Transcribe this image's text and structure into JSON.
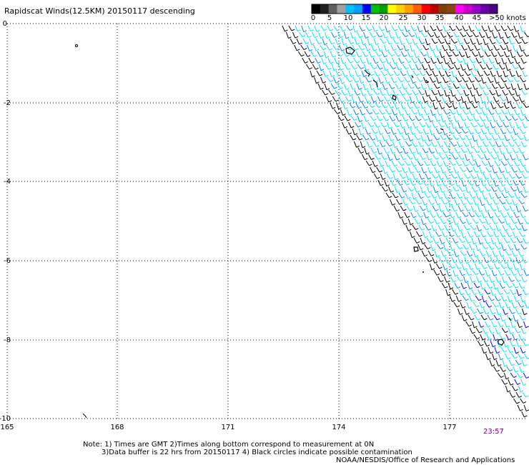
{
  "header": {
    "title": "Rapidscat Winds(12.5KM) 20150117 descending"
  },
  "legend": {
    "labels": [
      "0",
      "5",
      "10",
      "15",
      "20",
      "25",
      "30",
      "35",
      "40",
      "45",
      ">50 knots"
    ],
    "colors": [
      "#000000",
      "#202020",
      "#606060",
      "#a0a0a0",
      "#00c0ff",
      "#00a0ff",
      "#0000ff",
      "#00c000",
      "#00a000",
      "#ffff00",
      "#ffd000",
      "#ffa000",
      "#ff6000",
      "#ff0000",
      "#c00000",
      "#804000",
      "#8b4513",
      "#ff00ff",
      "#cc00cc",
      "#9900cc",
      "#6600aa",
      "#4b0082"
    ]
  },
  "axes": {
    "y_labels": [
      "0",
      "-2",
      "-4",
      "-6",
      "-8",
      "-10"
    ],
    "x_labels": [
      "165",
      "168",
      "171",
      "174",
      "177"
    ],
    "lat_range": [
      -10,
      0
    ],
    "lon_range": [
      165,
      179.3
    ]
  },
  "wind_colors": {
    "calm": "#000000",
    "light": "#00e0ff",
    "moderate": "#0080ff",
    "strong": "#0000ff",
    "very_strong": "#c0e000"
  },
  "time_label": "23:57",
  "notes": {
    "line1": "Note: 1) Times are GMT 2)Times along bottom correspond to measurement at 0N",
    "line2": "3)Data buffer is 22 hrs from 20150117 4) Black circles indicate possible contamination",
    "line3": "NOAA/NESDIS/Office of Research and Applications"
  }
}
